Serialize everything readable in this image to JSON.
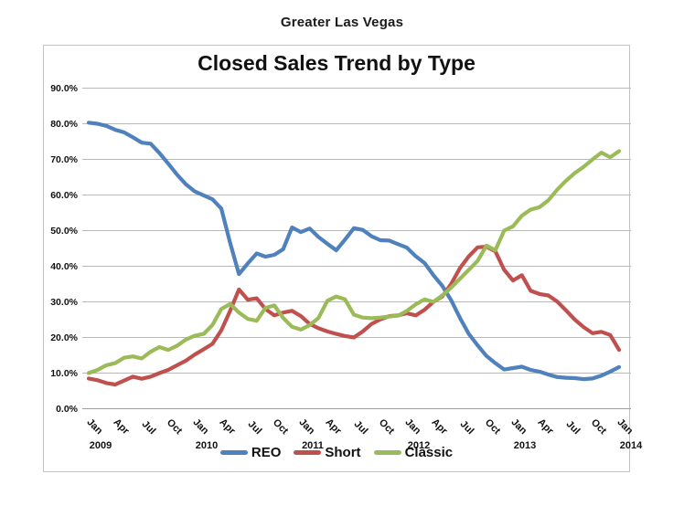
{
  "page": {
    "title": "Greater Las Vegas"
  },
  "chart_data": {
    "type": "line",
    "title": "Closed Sales Trend by Type",
    "ylabel": "",
    "xlabel": "",
    "ylim": [
      0,
      90
    ],
    "ytick_step": 10,
    "ytick_suffix": "%",
    "grid": true,
    "legend_position": "bottom",
    "x_months": [
      "Jan 2009",
      "Feb 2009",
      "Mar 2009",
      "Apr 2009",
      "May 2009",
      "Jun 2009",
      "Jul 2009",
      "Aug 2009",
      "Sep 2009",
      "Oct 2009",
      "Nov 2009",
      "Dec 2009",
      "Jan 2010",
      "Feb 2010",
      "Mar 2010",
      "Apr 2010",
      "May 2010",
      "Jun 2010",
      "Jul 2010",
      "Aug 2010",
      "Sep 2010",
      "Oct 2010",
      "Nov 2010",
      "Dec 2010",
      "Jan 2011",
      "Feb 2011",
      "Mar 2011",
      "Apr 2011",
      "May 2011",
      "Jun 2011",
      "Jul 2011",
      "Aug 2011",
      "Sep 2011",
      "Oct 2011",
      "Nov 2011",
      "Dec 2011",
      "Jan 2012",
      "Feb 2012",
      "Mar 2012",
      "Apr 2012",
      "May 2012",
      "Jun 2012",
      "Jul 2012",
      "Aug 2012",
      "Sep 2012",
      "Oct 2012",
      "Nov 2012",
      "Dec 2012",
      "Jan 2013",
      "Feb 2013",
      "Mar 2013",
      "Apr 2013",
      "May 2013",
      "Jun 2013",
      "Jul 2013",
      "Aug 2013",
      "Sep 2013",
      "Oct 2013",
      "Nov 2013",
      "Dec 2013",
      "Jan 2014"
    ],
    "xtick_month_labels": [
      "Jan",
      "Apr",
      "Jul",
      "Oct"
    ],
    "xtick_every": 3,
    "year_labels": [
      "2009",
      "2010",
      "2011",
      "2012",
      "2013",
      "2014"
    ],
    "series": [
      {
        "name": "REO",
        "color": "#4F81BD",
        "values": [
          80.3,
          80.0,
          79.4,
          78.3,
          77.6,
          76.2,
          74.7,
          74.4,
          71.8,
          68.8,
          65.7,
          63.0,
          61.0,
          59.9,
          58.8,
          56.2,
          46.5,
          37.8,
          40.8,
          43.6,
          42.7,
          43.2,
          44.8,
          50.9,
          49.6,
          50.6,
          48.2,
          46.3,
          44.5,
          47.5,
          50.7,
          50.2,
          48.4,
          47.3,
          47.2,
          46.2,
          45.2,
          42.8,
          40.9,
          37.5,
          34.5,
          30.5,
          25.5,
          21.0,
          17.8,
          14.8,
          12.8,
          11.0,
          11.4,
          11.8,
          10.9,
          10.4,
          9.6,
          8.9,
          8.7,
          8.6,
          8.3,
          8.5,
          9.3,
          10.4,
          11.7
        ]
      },
      {
        "name": "Short",
        "color": "#C0504D",
        "values": [
          8.5,
          8.0,
          7.2,
          6.8,
          7.9,
          9.0,
          8.4,
          9.0,
          10.0,
          10.9,
          12.2,
          13.5,
          15.2,
          16.7,
          18.2,
          22.0,
          27.5,
          33.5,
          30.6,
          31.0,
          28.0,
          26.2,
          27.0,
          27.5,
          26.0,
          23.8,
          22.6,
          21.7,
          21.0,
          20.4,
          20.0,
          21.7,
          23.8,
          25.1,
          26.0,
          26.2,
          26.8,
          26.2,
          27.8,
          30.0,
          31.5,
          35.0,
          39.5,
          42.8,
          45.3,
          45.5,
          44.2,
          39.0,
          36.0,
          37.5,
          33.1,
          32.2,
          31.8,
          30.1,
          27.6,
          25.0,
          22.9,
          21.2,
          21.6,
          20.7,
          16.5
        ]
      },
      {
        "name": "Classic",
        "color": "#9BBB59",
        "values": [
          10.0,
          10.9,
          12.2,
          12.8,
          14.3,
          14.7,
          14.1,
          16.0,
          17.3,
          16.5,
          17.7,
          19.4,
          20.5,
          21.0,
          23.5,
          28.0,
          29.4,
          27.0,
          25.2,
          24.7,
          28.3,
          29.0,
          25.5,
          23.0,
          22.2,
          23.5,
          25.5,
          30.3,
          31.5,
          30.7,
          26.4,
          25.6,
          25.4,
          25.6,
          25.9,
          26.1,
          27.5,
          29.3,
          30.7,
          30.0,
          31.8,
          34.0,
          36.5,
          39.0,
          41.5,
          45.8,
          44.5,
          50.0,
          51.2,
          54.2,
          55.9,
          56.6,
          58.5,
          61.5,
          64.0,
          66.2,
          67.9,
          70.0,
          71.9,
          70.6,
          72.3
        ]
      }
    ]
  }
}
